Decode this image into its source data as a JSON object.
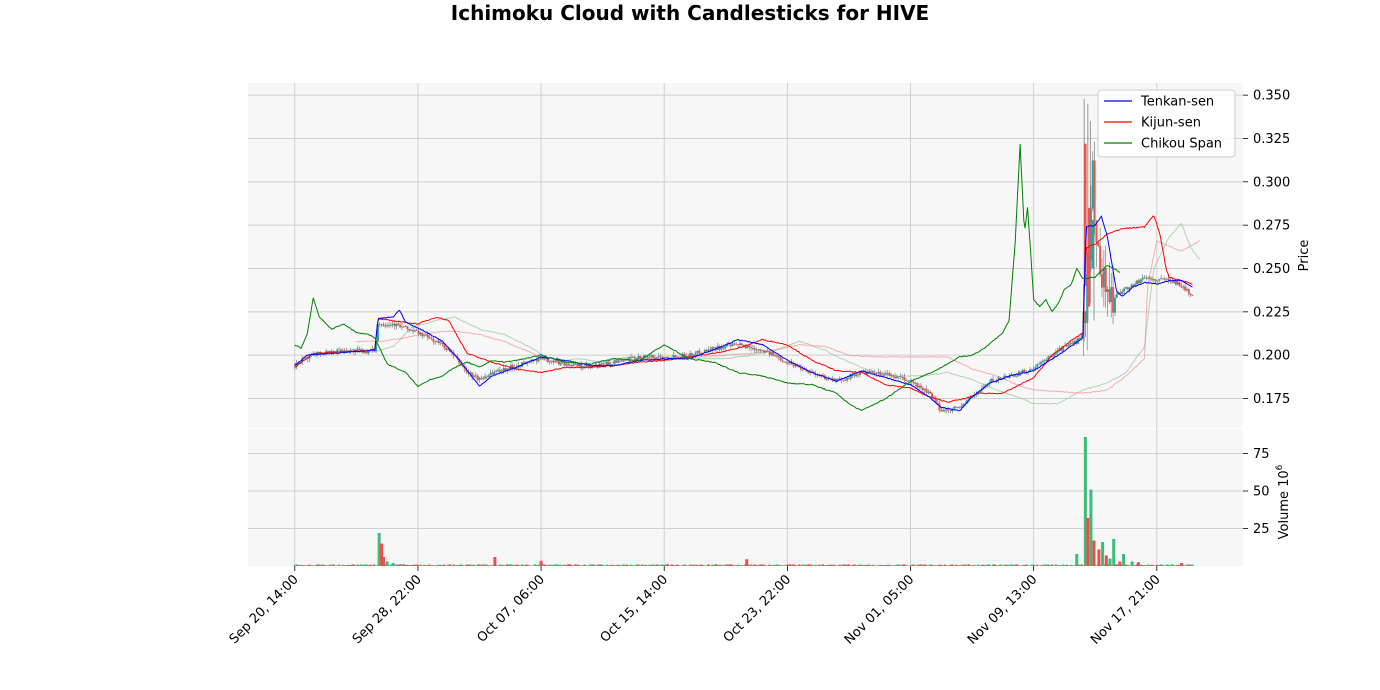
{
  "title": "Ichimoku Cloud with Candlesticks for HIVE",
  "chart_data": {
    "type": "candlestick",
    "price_panel": {
      "ylabel": "Price",
      "ylim": [
        0.158,
        0.357
      ],
      "yticks": [
        0.175,
        0.2,
        0.225,
        0.25,
        0.275,
        0.3,
        0.325,
        0.35
      ],
      "ytick_labels": [
        "0.175",
        "0.200",
        "0.225",
        "0.250",
        "0.275",
        "0.300",
        "0.325",
        "0.350"
      ],
      "grid": true,
      "legend_position": "upper right"
    },
    "volume_panel": {
      "ylabel": "Volume",
      "yexp": "6",
      "ylim": [
        0,
        92
      ],
      "yticks": [
        25,
        50,
        75
      ],
      "ytick_labels": [
        "25",
        "50",
        "75"
      ],
      "grid": true
    },
    "x_tick_labels": [
      "Sep 20, 14:00",
      "Sep 28, 22:00",
      "Oct 07, 06:00",
      "Oct 15, 14:00",
      "Oct 23, 22:00",
      "Nov 01, 05:00",
      "Nov 09, 13:00",
      "Nov 17, 21:00"
    ],
    "x_tick_positions": [
      0,
      200,
      400,
      600,
      800,
      1000,
      1200,
      1400
    ],
    "x_range": [
      -76,
      1540
    ],
    "n_points": 1460,
    "legend": [
      {
        "name": "Tenkan-sen",
        "color": "#0000ff"
      },
      {
        "name": "Kijun-sen",
        "color": "#ff0000"
      },
      {
        "name": "Chikou Span",
        "color": "#008000"
      }
    ],
    "colors": {
      "up": "#26a69a",
      "down": "#ef5350",
      "up_volume": "#3dbb7a",
      "down_volume": "#ef4d4d",
      "senkou_a": "#7fbf7f",
      "senkou_b": "#f08080"
    },
    "price_keyframes": [
      [
        0,
        0.194
      ],
      [
        30,
        0.201
      ],
      [
        80,
        0.203
      ],
      [
        120,
        0.202
      ],
      [
        130,
        0.203
      ],
      [
        135,
        0.218
      ],
      [
        160,
        0.218
      ],
      [
        200,
        0.213
      ],
      [
        240,
        0.206
      ],
      [
        260,
        0.199
      ],
      [
        280,
        0.19
      ],
      [
        300,
        0.186
      ],
      [
        320,
        0.19
      ],
      [
        360,
        0.194
      ],
      [
        400,
        0.198
      ],
      [
        440,
        0.195
      ],
      [
        480,
        0.193
      ],
      [
        520,
        0.196
      ],
      [
        560,
        0.199
      ],
      [
        600,
        0.199
      ],
      [
        640,
        0.2
      ],
      [
        680,
        0.204
      ],
      [
        720,
        0.206
      ],
      [
        760,
        0.203
      ],
      [
        800,
        0.196
      ],
      [
        840,
        0.19
      ],
      [
        880,
        0.185
      ],
      [
        920,
        0.19
      ],
      [
        960,
        0.189
      ],
      [
        1000,
        0.185
      ],
      [
        1030,
        0.178
      ],
      [
        1050,
        0.168
      ],
      [
        1080,
        0.17
      ],
      [
        1100,
        0.176
      ],
      [
        1130,
        0.185
      ],
      [
        1160,
        0.188
      ],
      [
        1200,
        0.192
      ],
      [
        1240,
        0.203
      ],
      [
        1270,
        0.208
      ],
      [
        1280,
        0.212
      ],
      [
        1288,
        0.244
      ],
      [
        1295,
        0.312
      ],
      [
        1300,
        0.27
      ],
      [
        1310,
        0.25
      ],
      [
        1320,
        0.236
      ],
      [
        1330,
        0.232
      ],
      [
        1345,
        0.238
      ],
      [
        1360,
        0.24
      ],
      [
        1380,
        0.245
      ],
      [
        1400,
        0.243
      ],
      [
        1420,
        0.244
      ],
      [
        1440,
        0.24
      ],
      [
        1459,
        0.234
      ]
    ],
    "tenkan_keyframes": [
      [
        0,
        0.194
      ],
      [
        20,
        0.2
      ],
      [
        60,
        0.201
      ],
      [
        130,
        0.203
      ],
      [
        135,
        0.221
      ],
      [
        160,
        0.222
      ],
      [
        170,
        0.226
      ],
      [
        180,
        0.219
      ],
      [
        210,
        0.214
      ],
      [
        240,
        0.208
      ],
      [
        270,
        0.196
      ],
      [
        300,
        0.182
      ],
      [
        320,
        0.188
      ],
      [
        360,
        0.193
      ],
      [
        400,
        0.199
      ],
      [
        440,
        0.197
      ],
      [
        480,
        0.194
      ],
      [
        520,
        0.194
      ],
      [
        560,
        0.197
      ],
      [
        600,
        0.198
      ],
      [
        640,
        0.198
      ],
      [
        680,
        0.203
      ],
      [
        720,
        0.209
      ],
      [
        760,
        0.206
      ],
      [
        800,
        0.197
      ],
      [
        840,
        0.19
      ],
      [
        880,
        0.185
      ],
      [
        920,
        0.191
      ],
      [
        960,
        0.187
      ],
      [
        1000,
        0.183
      ],
      [
        1030,
        0.176
      ],
      [
        1050,
        0.17
      ],
      [
        1080,
        0.168
      ],
      [
        1100,
        0.176
      ],
      [
        1130,
        0.184
      ],
      [
        1160,
        0.188
      ],
      [
        1200,
        0.191
      ],
      [
        1240,
        0.2
      ],
      [
        1280,
        0.21
      ],
      [
        1285,
        0.274
      ],
      [
        1300,
        0.275
      ],
      [
        1310,
        0.28
      ],
      [
        1320,
        0.268
      ],
      [
        1335,
        0.236
      ],
      [
        1345,
        0.234
      ],
      [
        1360,
        0.239
      ],
      [
        1380,
        0.242
      ],
      [
        1400,
        0.241
      ],
      [
        1420,
        0.243
      ],
      [
        1440,
        0.243
      ],
      [
        1459,
        0.239
      ]
    ],
    "kijun_keyframes": [
      [
        0,
        0.193
      ],
      [
        30,
        0.201
      ],
      [
        80,
        0.202
      ],
      [
        130,
        0.203
      ],
      [
        135,
        0.221
      ],
      [
        200,
        0.218
      ],
      [
        230,
        0.222
      ],
      [
        250,
        0.22
      ],
      [
        280,
        0.201
      ],
      [
        320,
        0.196
      ],
      [
        360,
        0.192
      ],
      [
        400,
        0.19
      ],
      [
        440,
        0.193
      ],
      [
        480,
        0.193
      ],
      [
        520,
        0.194
      ],
      [
        560,
        0.196
      ],
      [
        600,
        0.197
      ],
      [
        640,
        0.199
      ],
      [
        680,
        0.201
      ],
      [
        720,
        0.204
      ],
      [
        760,
        0.209
      ],
      [
        800,
        0.206
      ],
      [
        840,
        0.197
      ],
      [
        880,
        0.191
      ],
      [
        920,
        0.19
      ],
      [
        960,
        0.183
      ],
      [
        1000,
        0.181
      ],
      [
        1030,
        0.176
      ],
      [
        1060,
        0.173
      ],
      [
        1090,
        0.175
      ],
      [
        1110,
        0.178
      ],
      [
        1150,
        0.178
      ],
      [
        1200,
        0.187
      ],
      [
        1230,
        0.2
      ],
      [
        1260,
        0.208
      ],
      [
        1280,
        0.213
      ],
      [
        1285,
        0.262
      ],
      [
        1300,
        0.264
      ],
      [
        1320,
        0.27
      ],
      [
        1345,
        0.273
      ],
      [
        1380,
        0.274
      ],
      [
        1395,
        0.281
      ],
      [
        1405,
        0.27
      ],
      [
        1415,
        0.25
      ],
      [
        1420,
        0.245
      ],
      [
        1440,
        0.243
      ],
      [
        1459,
        0.241
      ]
    ],
    "chikou_keyframes": [
      [
        0,
        0.206
      ],
      [
        10,
        0.204
      ],
      [
        20,
        0.212
      ],
      [
        30,
        0.233
      ],
      [
        40,
        0.222
      ],
      [
        60,
        0.215
      ],
      [
        80,
        0.218
      ],
      [
        100,
        0.213
      ],
      [
        120,
        0.212
      ],
      [
        130,
        0.21
      ],
      [
        150,
        0.195
      ],
      [
        180,
        0.19
      ],
      [
        200,
        0.182
      ],
      [
        220,
        0.186
      ],
      [
        240,
        0.188
      ],
      [
        260,
        0.193
      ],
      [
        280,
        0.196
      ],
      [
        300,
        0.193
      ],
      [
        320,
        0.197
      ],
      [
        340,
        0.196
      ],
      [
        360,
        0.197
      ],
      [
        400,
        0.2
      ],
      [
        440,
        0.196
      ],
      [
        480,
        0.195
      ],
      [
        520,
        0.198
      ],
      [
        560,
        0.197
      ],
      [
        600,
        0.206
      ],
      [
        620,
        0.202
      ],
      [
        640,
        0.198
      ],
      [
        680,
        0.196
      ],
      [
        700,
        0.193
      ],
      [
        720,
        0.19
      ],
      [
        760,
        0.188
      ],
      [
        800,
        0.184
      ],
      [
        840,
        0.183
      ],
      [
        880,
        0.178
      ],
      [
        900,
        0.172
      ],
      [
        920,
        0.168
      ],
      [
        960,
        0.175
      ],
      [
        1000,
        0.185
      ],
      [
        1040,
        0.191
      ],
      [
        1060,
        0.195
      ],
      [
        1080,
        0.199
      ],
      [
        1100,
        0.2
      ],
      [
        1120,
        0.204
      ],
      [
        1150,
        0.213
      ],
      [
        1160,
        0.22
      ],
      [
        1170,
        0.265
      ],
      [
        1178,
        0.322
      ],
      [
        1185,
        0.27
      ],
      [
        1190,
        0.285
      ],
      [
        1195,
        0.26
      ],
      [
        1200,
        0.232
      ],
      [
        1210,
        0.228
      ],
      [
        1220,
        0.232
      ],
      [
        1230,
        0.225
      ],
      [
        1240,
        0.23
      ],
      [
        1250,
        0.238
      ],
      [
        1260,
        0.24
      ],
      [
        1270,
        0.25
      ],
      [
        1280,
        0.244
      ],
      [
        1300,
        0.245
      ],
      [
        1320,
        0.252
      ],
      [
        1330,
        0.25
      ],
      [
        1340,
        0.248
      ]
    ],
    "senkou_a_keyframes": [
      [
        100,
        0.204
      ],
      [
        130,
        0.202
      ],
      [
        160,
        0.205
      ],
      [
        190,
        0.216
      ],
      [
        230,
        0.22
      ],
      [
        260,
        0.222
      ],
      [
        300,
        0.215
      ],
      [
        340,
        0.212
      ],
      [
        380,
        0.205
      ],
      [
        420,
        0.196
      ],
      [
        460,
        0.198
      ],
      [
        500,
        0.196
      ],
      [
        540,
        0.199
      ],
      [
        580,
        0.197
      ],
      [
        620,
        0.198
      ],
      [
        660,
        0.198
      ],
      [
        700,
        0.198
      ],
      [
        740,
        0.2
      ],
      [
        780,
        0.203
      ],
      [
        820,
        0.208
      ],
      [
        860,
        0.203
      ],
      [
        900,
        0.196
      ],
      [
        940,
        0.19
      ],
      [
        980,
        0.188
      ],
      [
        1020,
        0.188
      ],
      [
        1060,
        0.19
      ],
      [
        1100,
        0.186
      ],
      [
        1140,
        0.18
      ],
      [
        1180,
        0.175
      ],
      [
        1200,
        0.172
      ],
      [
        1240,
        0.172
      ],
      [
        1280,
        0.18
      ],
      [
        1320,
        0.184
      ],
      [
        1350,
        0.19
      ],
      [
        1380,
        0.205
      ],
      [
        1395,
        0.25
      ],
      [
        1420,
        0.268
      ],
      [
        1440,
        0.276
      ],
      [
        1455,
        0.262
      ],
      [
        1470,
        0.255
      ]
    ],
    "senkou_b_keyframes": [
      [
        100,
        0.208
      ],
      [
        140,
        0.208
      ],
      [
        180,
        0.21
      ],
      [
        220,
        0.213
      ],
      [
        260,
        0.214
      ],
      [
        300,
        0.212
      ],
      [
        340,
        0.208
      ],
      [
        380,
        0.202
      ],
      [
        420,
        0.196
      ],
      [
        460,
        0.193
      ],
      [
        500,
        0.195
      ],
      [
        540,
        0.197
      ],
      [
        580,
        0.198
      ],
      [
        620,
        0.199
      ],
      [
        660,
        0.199
      ],
      [
        700,
        0.2
      ],
      [
        740,
        0.201
      ],
      [
        780,
        0.203
      ],
      [
        820,
        0.206
      ],
      [
        860,
        0.205
      ],
      [
        900,
        0.2
      ],
      [
        940,
        0.199
      ],
      [
        980,
        0.199
      ],
      [
        1020,
        0.199
      ],
      [
        1060,
        0.199
      ],
      [
        1100,
        0.192
      ],
      [
        1140,
        0.188
      ],
      [
        1180,
        0.182
      ],
      [
        1200,
        0.18
      ],
      [
        1240,
        0.179
      ],
      [
        1280,
        0.178
      ],
      [
        1320,
        0.18
      ],
      [
        1350,
        0.188
      ],
      [
        1380,
        0.198
      ],
      [
        1385,
        0.24
      ],
      [
        1400,
        0.266
      ],
      [
        1440,
        0.26
      ],
      [
        1470,
        0.266
      ]
    ],
    "volume_spikes": [
      [
        137,
        22,
        "up"
      ],
      [
        141,
        15,
        "down"
      ],
      [
        144,
        6,
        "down"
      ],
      [
        150,
        3,
        "up"
      ],
      [
        160,
        2,
        "up"
      ],
      [
        325,
        6,
        "down"
      ],
      [
        400,
        3.5,
        "down"
      ],
      [
        734,
        4.5,
        "down"
      ],
      [
        1270,
        8,
        "up"
      ],
      [
        1284,
        86,
        "up"
      ],
      [
        1288,
        32,
        "down"
      ],
      [
        1293,
        51,
        "up"
      ],
      [
        1298,
        17,
        "down"
      ],
      [
        1306,
        11,
        "down"
      ],
      [
        1312,
        16,
        "up"
      ],
      [
        1318,
        7,
        "down"
      ],
      [
        1324,
        5,
        "up"
      ],
      [
        1330,
        18,
        "up"
      ],
      [
        1340,
        3,
        "down"
      ],
      [
        1346,
        8,
        "up"
      ],
      [
        1360,
        3,
        "up"
      ],
      [
        1370,
        2.5,
        "down"
      ],
      [
        1440,
        2,
        "down"
      ]
    ]
  }
}
